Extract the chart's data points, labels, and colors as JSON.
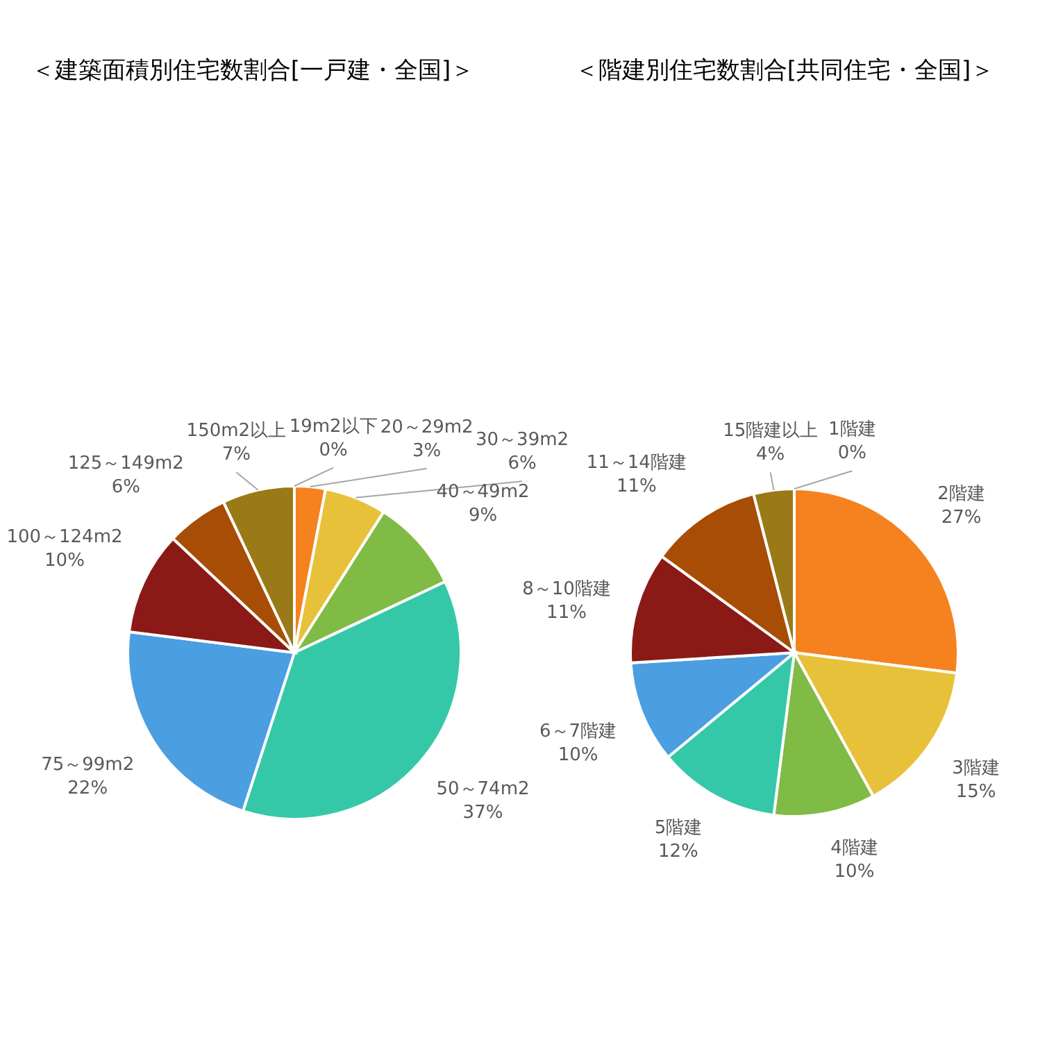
{
  "chart_data": [
    {
      "type": "pie",
      "title": "＜建築面積別住宅数割合[一戸建・全国]＞",
      "categories": [
        "19m2以下",
        "20～29m2",
        "30～39m2",
        "40～49m2",
        "50～74m2",
        "75～99m2",
        "100～124m2",
        "125～149m2",
        "150m2以上"
      ],
      "values": [
        0,
        3,
        6,
        9,
        37,
        22,
        10,
        6,
        7
      ],
      "colors": [
        "#c0504d",
        "#f5821f",
        "#e8c13a",
        "#80bb45",
        "#35c8a8",
        "#4b9ee0",
        "#8b1a17",
        "#a84d06",
        "#9a7a17"
      ],
      "value_labels": [
        "0%",
        "3%",
        "6%",
        "9%",
        "37%",
        "22%",
        "10%",
        "6%",
        "7%"
      ]
    },
    {
      "type": "pie",
      "title": "＜階建別住宅数割合[共同住宅・全国]＞",
      "categories": [
        "1階建",
        "2階建",
        "3階建",
        "4階建",
        "5階建",
        "6～7階建",
        "8～10階建",
        "11～14階建",
        "15階建以上"
      ],
      "values": [
        0,
        27,
        15,
        10,
        12,
        10,
        11,
        11,
        4
      ],
      "colors": [
        "#c0504d",
        "#f5821f",
        "#e8c13a",
        "#80bb45",
        "#35c8a8",
        "#4b9ee0",
        "#8b1a17",
        "#a84d06",
        "#9a7a17"
      ],
      "value_labels": [
        "0%",
        "27%",
        "15%",
        "10%",
        "12%",
        "10%",
        "11%",
        "11%",
        "4%"
      ]
    }
  ]
}
